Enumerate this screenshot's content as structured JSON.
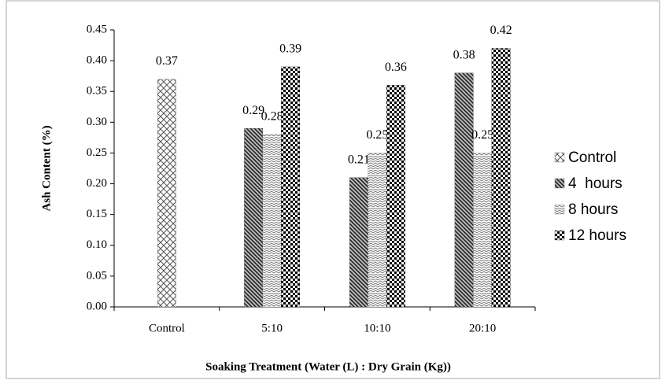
{
  "chart_data": {
    "type": "bar",
    "y_label": "Ash Content (%)",
    "x_label": "Soaking Treatment (Water (L) : Dry Grain (Kg))",
    "categories": [
      "Control",
      "5:10",
      "10:10",
      "20:10"
    ],
    "series": [
      {
        "name": "Control",
        "color": "#555555",
        "pattern": "crosshatch",
        "values": [
          0.37,
          null,
          null,
          null
        ]
      },
      {
        "name": "4  hours",
        "color": "#333333",
        "pattern": "diagonal",
        "values": [
          null,
          0.29,
          0.21,
          0.38
        ]
      },
      {
        "name": "8 hours",
        "color": "#666666",
        "pattern": "zigzag",
        "values": [
          null,
          0.28,
          0.25,
          0.25
        ]
      },
      {
        "name": "12 hours",
        "color": "#000000",
        "pattern": "checker",
        "values": [
          null,
          0.39,
          0.36,
          0.42
        ]
      }
    ],
    "ylim": [
      0,
      0.45
    ],
    "yticks": [
      {
        "value": 0,
        "label": "0.00"
      },
      {
        "value": 0.05,
        "label": "0.05"
      },
      {
        "value": 0.1,
        "label": "0.10"
      },
      {
        "value": 0.15,
        "label": "0.15"
      },
      {
        "value": 0.2,
        "label": "0.20"
      },
      {
        "value": 0.25,
        "label": "0.25"
      },
      {
        "value": 0.3,
        "label": "0.30"
      },
      {
        "value": 0.35,
        "label": "0.35"
      },
      {
        "value": 0.4,
        "label": "0.40"
      },
      {
        "value": 0.45,
        "label": "0.45"
      }
    ],
    "legend": "right"
  }
}
